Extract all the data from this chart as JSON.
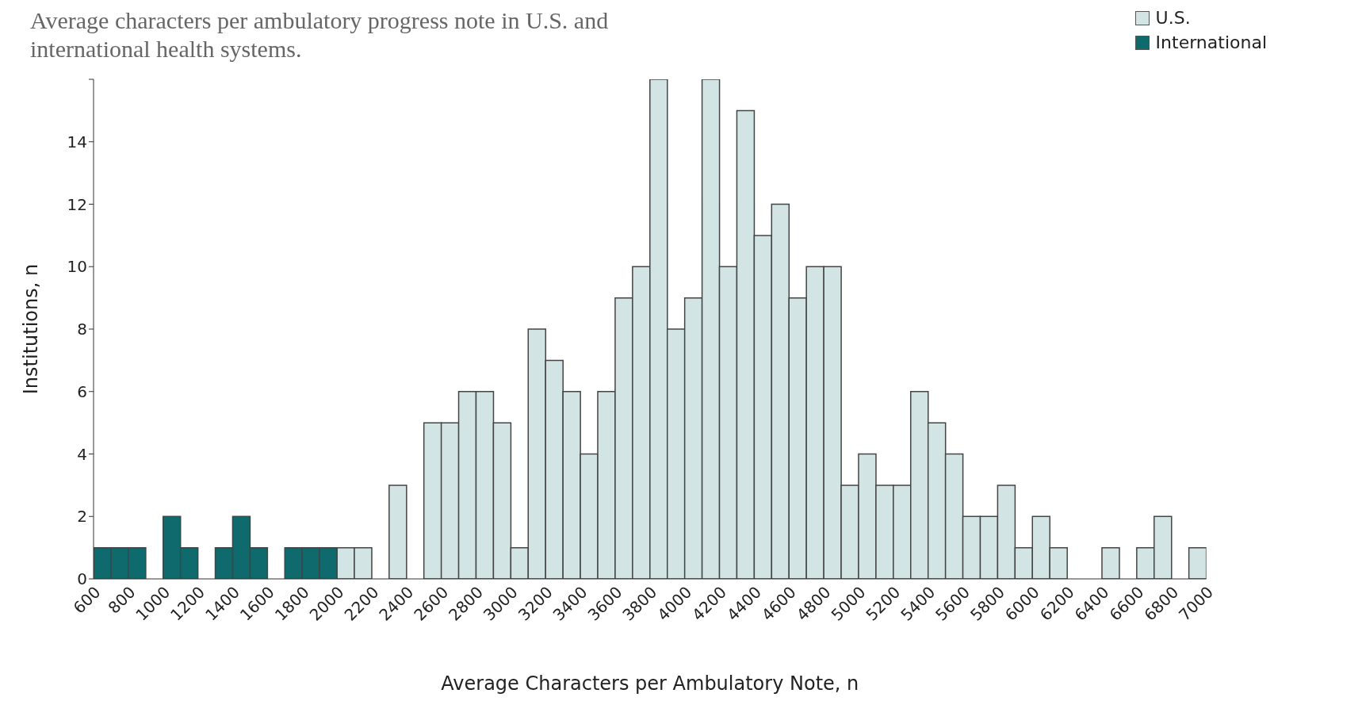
{
  "chart_data": {
    "type": "histogram",
    "title": "Average characters per ambulatory progress note in U.S. and international health systems.",
    "xlabel": "Average Characters per Ambulatory Note, n",
    "ylabel": "Institutions, n",
    "bins": [
      600,
      700,
      800,
      900,
      1000,
      1100,
      1200,
      1300,
      1400,
      1500,
      1600,
      1700,
      1800,
      1900,
      2000,
      2100,
      2200,
      2300,
      2400,
      2500,
      2600,
      2700,
      2800,
      2900,
      3000,
      3100,
      3200,
      3300,
      3400,
      3500,
      3600,
      3700,
      3800,
      3900,
      4000,
      4100,
      4200,
      4300,
      4400,
      4500,
      4600,
      4700,
      4800,
      4900,
      5000,
      5100,
      5200,
      5300,
      5400,
      5500,
      5600,
      5700,
      5800,
      5900,
      6000,
      6100,
      6200,
      6300,
      6400,
      6500,
      6600,
      6700,
      6800,
      6900,
      7000
    ],
    "series": [
      {
        "name": "U.S.",
        "color": "#d3e4e4",
        "values": [
          null,
          null,
          null,
          null,
          null,
          null,
          null,
          null,
          null,
          null,
          null,
          null,
          null,
          null,
          1,
          1,
          0,
          3,
          0,
          5,
          5,
          6,
          6,
          5,
          1,
          8,
          7,
          6,
          4,
          6,
          9,
          10,
          16,
          8,
          9,
          16,
          10,
          15,
          11,
          12,
          9,
          10,
          10,
          3,
          4,
          3,
          3,
          6,
          5,
          4,
          2,
          2,
          3,
          1,
          2,
          1,
          0,
          0,
          1,
          0,
          1,
          2,
          0,
          1
        ]
      },
      {
        "name": "International",
        "color": "#0e6a6c",
        "values": [
          1,
          1,
          1,
          0,
          2,
          1,
          0,
          1,
          2,
          1,
          0,
          1,
          1,
          1,
          null,
          null,
          null,
          null,
          null,
          null,
          null,
          null,
          null,
          null,
          null,
          null,
          null,
          null,
          null,
          null,
          null,
          null,
          null,
          null,
          null,
          null,
          null,
          null,
          null,
          null,
          null,
          null,
          null,
          null,
          null,
          null,
          null,
          null,
          null,
          null,
          null,
          null,
          null,
          null,
          null,
          null,
          null,
          null,
          null,
          null,
          null,
          null,
          null,
          null
        ]
      }
    ],
    "xlim": [
      600,
      7000
    ],
    "xticks": [
      600,
      800,
      1000,
      1200,
      1400,
      1600,
      1800,
      2000,
      2200,
      2400,
      2600,
      2800,
      3000,
      3200,
      3400,
      3600,
      3800,
      4000,
      4200,
      4400,
      4600,
      4800,
      5000,
      5200,
      5400,
      5600,
      5800,
      6000,
      6200,
      6400,
      6600,
      6800,
      7000
    ],
    "ylim": [
      0,
      16
    ],
    "yticks": [
      0,
      2,
      4,
      6,
      8,
      10,
      12,
      14,
      {
        "value": 16,
        "label": null
      }
    ],
    "legend": "top right",
    "grid": false
  }
}
